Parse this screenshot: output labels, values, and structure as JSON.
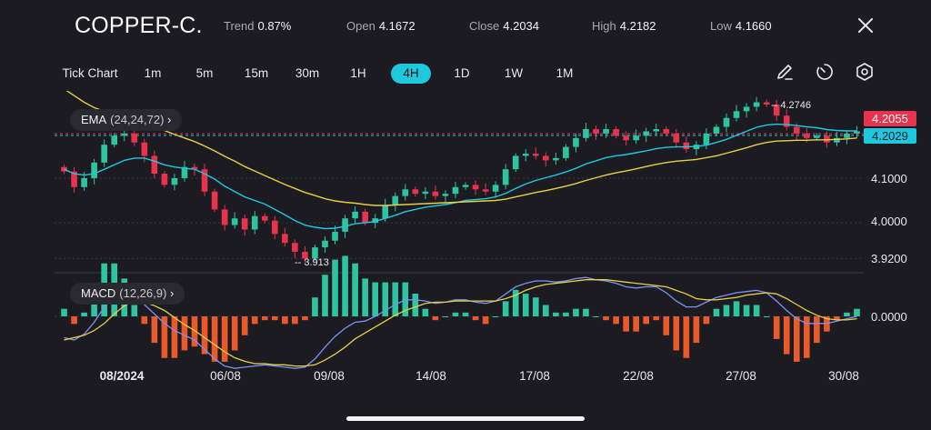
{
  "header": {
    "symbol": "COPPER-C.",
    "trend_label": "Trend",
    "trend_value": "0.87%",
    "open_label": "Open",
    "open_value": "4.1672",
    "close_label": "Close",
    "close_value": "4.2034",
    "high_label": "High",
    "high_value": "4.2182",
    "low_label": "Low",
    "low_value": "4.1660",
    "close_icon": "close-icon"
  },
  "timeframes": {
    "items": [
      "Tick Chart",
      "1m",
      "5m",
      "15m",
      "30m",
      "1H",
      "4H",
      "1D",
      "1W",
      "1M"
    ],
    "active": "4H",
    "accent_color": "#1ec9e0"
  },
  "toolbar": {
    "icons": [
      "draw-icon",
      "timer-icon",
      "settings-icon"
    ]
  },
  "indicators": {
    "ema_name": "EMA",
    "ema_params": "(24,24,72)",
    "macd_name": "MACD",
    "macd_params": "(12,26,9)",
    "chevron_icon": "chevron-right-icon"
  },
  "chart_data": [
    {
      "type": "candlestick",
      "title": "",
      "x_tick_labels": [
        "08/2024",
        "06/08",
        "09/08",
        "14/08",
        "17/08",
        "22/08",
        "27/08",
        "30/08"
      ],
      "y_tick_labels": [
        "4.1000",
        "4.0000",
        "3.9200"
      ],
      "ylim": [
        3.9,
        4.3
      ],
      "grid": true,
      "annotations": {
        "high_marker": "4.2746",
        "low_marker": "3.913"
      },
      "price_tags": [
        {
          "value": "4.2055",
          "color": "#e8334d"
        },
        {
          "value": "4.2029",
          "color": "#1ec9e0"
        }
      ],
      "up_color": "#2ec4a0",
      "down_color": "#e8334d",
      "close_series": [
        4.115,
        4.08,
        4.1,
        4.135,
        4.175,
        4.195,
        4.2,
        4.18,
        4.15,
        4.11,
        4.085,
        4.1,
        4.125,
        4.12,
        4.07,
        4.03,
        3.995,
        4.01,
        3.985,
        4.015,
        4.005,
        3.975,
        3.955,
        3.935,
        3.92,
        3.945,
        3.96,
        3.98,
        4.01,
        4.025,
        4.0,
        4.01,
        4.04,
        4.06,
        4.075,
        4.065,
        4.07,
        4.06,
        4.065,
        4.08,
        4.085,
        4.075,
        4.07,
        4.085,
        4.12,
        4.15,
        4.155,
        4.15,
        4.14,
        4.145,
        4.17,
        4.19,
        4.21,
        4.2,
        4.21,
        4.195,
        4.185,
        4.195,
        4.205,
        4.21,
        4.2,
        4.18,
        4.165,
        4.175,
        4.2,
        4.215,
        4.235,
        4.25,
        4.26,
        4.27,
        4.265,
        4.24,
        4.215,
        4.2,
        4.19,
        4.195,
        4.18,
        4.19,
        4.2,
        4.205
      ],
      "series": [
        {
          "name": "EMA",
          "values": [
            4.12,
            4.11,
            4.107,
            4.11,
            4.12,
            4.13,
            4.14,
            4.145,
            4.145,
            4.138,
            4.13,
            4.125,
            4.122,
            4.12,
            4.11,
            4.098,
            4.082,
            4.07,
            4.058,
            4.05,
            4.042,
            4.03,
            4.018,
            4.005,
            3.995,
            3.99,
            3.987,
            3.988,
            3.992,
            3.998,
            4.0,
            4.003,
            4.01,
            4.017,
            4.025,
            4.03,
            4.035,
            4.038,
            4.041,
            4.045,
            4.05,
            4.052,
            4.054,
            4.058,
            4.066,
            4.077,
            4.087,
            4.095,
            4.101,
            4.107,
            4.114,
            4.122,
            4.132,
            4.139,
            4.146,
            4.15,
            4.153,
            4.157,
            4.161,
            4.166,
            4.169,
            4.17,
            4.17,
            4.171,
            4.174,
            4.18,
            4.187,
            4.196,
            4.205,
            4.214,
            4.219,
            4.221,
            4.22,
            4.218,
            4.215,
            4.213,
            4.209,
            4.207,
            4.206,
            4.206
          ],
          "color": "#1ec9e0"
        },
        {
          "name": "EMA",
          "values": [
            4.3,
            4.285,
            4.27,
            4.258,
            4.25,
            4.245,
            4.24,
            4.234,
            4.226,
            4.217,
            4.207,
            4.198,
            4.19,
            4.182,
            4.172,
            4.161,
            4.149,
            4.138,
            4.126,
            4.116,
            4.106,
            4.096,
            4.086,
            4.077,
            4.068,
            4.061,
            4.054,
            4.049,
            4.046,
            4.044,
            4.041,
            4.039,
            4.039,
            4.04,
            4.041,
            4.042,
            4.043,
            4.044,
            4.045,
            4.046,
            4.047,
            4.048,
            4.049,
            4.05,
            4.053,
            4.058,
            4.063,
            4.068,
            4.072,
            4.077,
            4.082,
            4.088,
            4.095,
            4.101,
            4.107,
            4.112,
            4.116,
            4.121,
            4.126,
            4.131,
            4.135,
            4.138,
            4.14,
            4.142,
            4.146,
            4.15,
            4.156,
            4.162,
            4.168,
            4.175,
            4.18,
            4.183,
            4.184,
            4.185,
            4.185,
            4.186,
            4.186,
            4.187,
            4.188,
            4.19
          ],
          "color": "#e5cf45"
        }
      ]
    },
    {
      "type": "macd",
      "y_tick_labels": [
        "0.0000"
      ],
      "ylim": [
        -0.05,
        0.04
      ],
      "series": [
        {
          "name": "MACD",
          "values": [
            -0.018,
            -0.02,
            -0.015,
            -0.005,
            0.008,
            0.016,
            0.019,
            0.016,
            0.01,
            0.002,
            -0.006,
            -0.012,
            -0.016,
            -0.02,
            -0.028,
            -0.036,
            -0.042,
            -0.044,
            -0.043,
            -0.042,
            -0.041,
            -0.042,
            -0.043,
            -0.044,
            -0.043,
            -0.036,
            -0.026,
            -0.017,
            -0.01,
            -0.005,
            -0.004,
            0.0,
            0.005,
            0.01,
            0.014,
            0.014,
            0.013,
            0.011,
            0.012,
            0.014,
            0.014,
            0.012,
            0.011,
            0.013,
            0.019,
            0.025,
            0.028,
            0.03,
            0.03,
            0.029,
            0.03,
            0.032,
            0.033,
            0.031,
            0.03,
            0.028,
            0.025,
            0.024,
            0.025,
            0.025,
            0.02,
            0.013,
            0.008,
            0.008,
            0.012,
            0.016,
            0.018,
            0.02,
            0.021,
            0.022,
            0.02,
            0.013,
            0.005,
            -0.002,
            -0.006,
            -0.006,
            -0.006,
            -0.004,
            -0.002,
            0.0
          ],
          "color": "#7b92f5"
        },
        {
          "name": "Signal",
          "values": [
            -0.02,
            -0.018,
            -0.016,
            -0.012,
            -0.006,
            0.002,
            0.009,
            0.013,
            0.012,
            0.009,
            0.005,
            -0.001,
            -0.007,
            -0.012,
            -0.018,
            -0.024,
            -0.03,
            -0.035,
            -0.038,
            -0.04,
            -0.04,
            -0.041,
            -0.041,
            -0.042,
            -0.042,
            -0.041,
            -0.037,
            -0.032,
            -0.026,
            -0.019,
            -0.014,
            -0.009,
            -0.004,
            0.001,
            0.005,
            0.008,
            0.011,
            0.012,
            0.012,
            0.013,
            0.013,
            0.013,
            0.013,
            0.013,
            0.015,
            0.018,
            0.022,
            0.025,
            0.027,
            0.028,
            0.029,
            0.03,
            0.031,
            0.031,
            0.031,
            0.03,
            0.029,
            0.028,
            0.027,
            0.026,
            0.025,
            0.022,
            0.019,
            0.015,
            0.014,
            0.014,
            0.015,
            0.016,
            0.018,
            0.019,
            0.02,
            0.019,
            0.015,
            0.01,
            0.005,
            0.001,
            -0.002,
            -0.003,
            -0.003,
            -0.002
          ],
          "color": "#e5cf45"
        }
      ],
      "histogram_up_color": "#2ec4a0",
      "histogram_down_color": "#e85a2a"
    }
  ]
}
